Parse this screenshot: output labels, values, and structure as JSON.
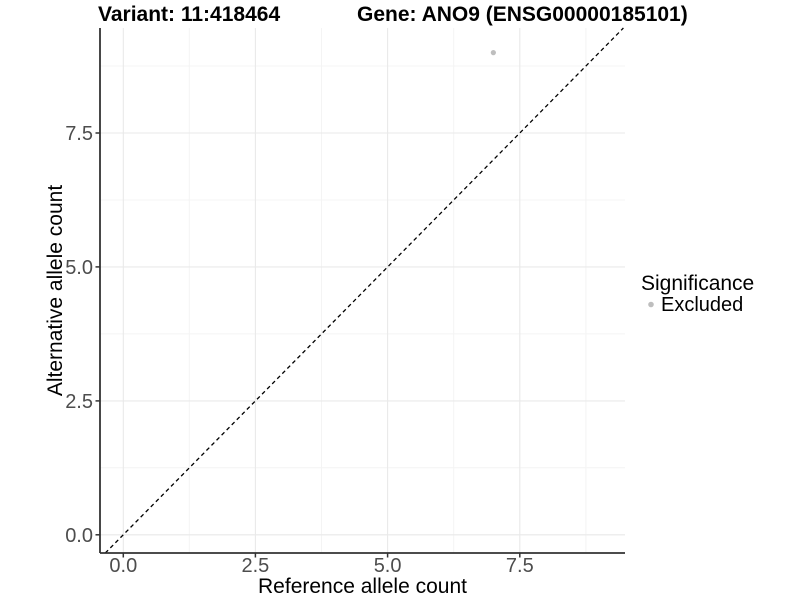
{
  "header": {
    "variant_title": "Variant: 11:418464",
    "gene_title": "Gene: ANO9 (ENSG00000185101)"
  },
  "chart_data": {
    "type": "scatter",
    "title": "Variant: 11:418464 — Gene: ANO9 (ENSG00000185101)",
    "xlabel": "Reference allele count",
    "ylabel": "Alternative allele count",
    "xlim": [
      -0.44,
      9.49
    ],
    "ylim": [
      -0.34,
      9.46
    ],
    "x_tick_values": [
      0,
      2.5,
      5,
      7.5
    ],
    "y_tick_values": [
      0,
      2.5,
      5,
      7.5
    ],
    "x_tick_labels": [
      "0.0",
      "2.5",
      "5.0",
      "7.5"
    ],
    "y_tick_labels": [
      "0.0",
      "2.5",
      "5.0",
      "7.5"
    ],
    "grid": true,
    "series": [
      {
        "name": "Excluded",
        "color": "#bebebe",
        "points": [
          {
            "x": 7,
            "y": 9
          }
        ]
      }
    ],
    "reference_line": {
      "slope": 1,
      "intercept": 0,
      "style": "dashed",
      "color": "#000000",
      "meaning": "identity line y = x"
    },
    "legend": {
      "position": "right",
      "title": "Significance",
      "items": [
        {
          "label": "Excluded",
          "color": "#bebebe"
        }
      ]
    }
  }
}
